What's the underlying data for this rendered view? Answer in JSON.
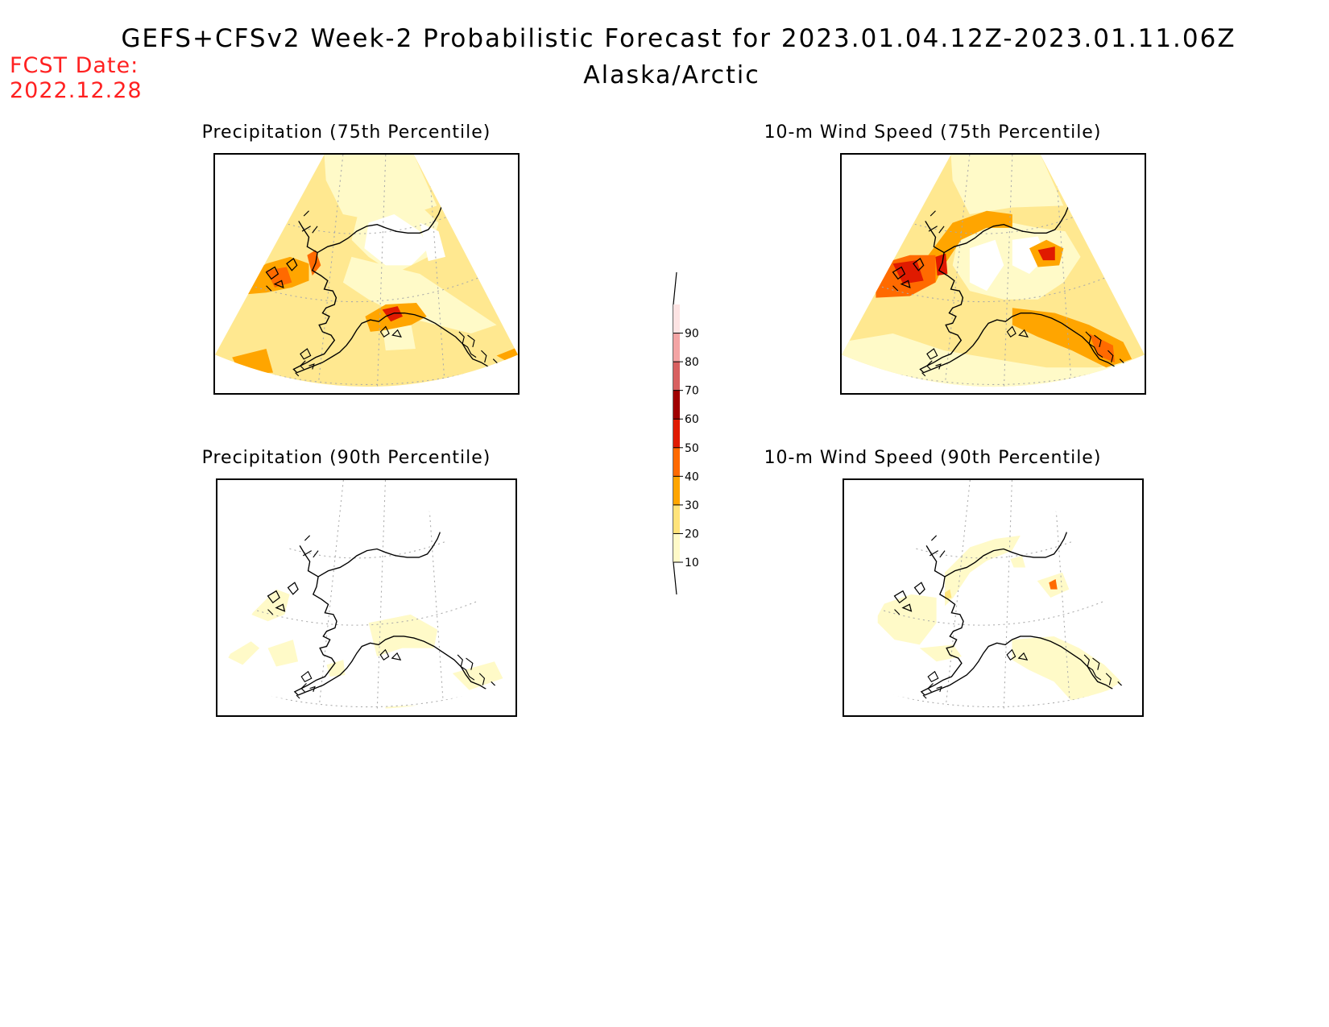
{
  "header": {
    "title": "GEFS+CFSv2 Week-2 Probabilistic Forecast for 2023.01.04.12Z-2023.01.11.06Z",
    "region": "Alaska/Arctic",
    "fcst_label": "FCST Date:",
    "fcst_date": "2022.12.28"
  },
  "panels": [
    {
      "id": "precip-75",
      "title": "Precipitation (75th Percentile)"
    },
    {
      "id": "wind-75",
      "title": "10-m Wind Speed (75th Percentile)"
    },
    {
      "id": "precip-90",
      "title": "Precipitation (90th Percentile)"
    },
    {
      "id": "wind-90",
      "title": "10-m Wind Speed (90th Percentile)"
    }
  ],
  "colorbar": {
    "levels": [
      "10",
      "20",
      "30",
      "40",
      "50",
      "60",
      "70",
      "80",
      "90"
    ],
    "colors": [
      "#fffac8",
      "#ffe37a",
      "#ffa500",
      "#ff6a00",
      "#e01a00",
      "#a00000",
      "#d86060",
      "#f3a4a4",
      "#fde3e3"
    ],
    "unit_hint": "probability (%)"
  }
}
